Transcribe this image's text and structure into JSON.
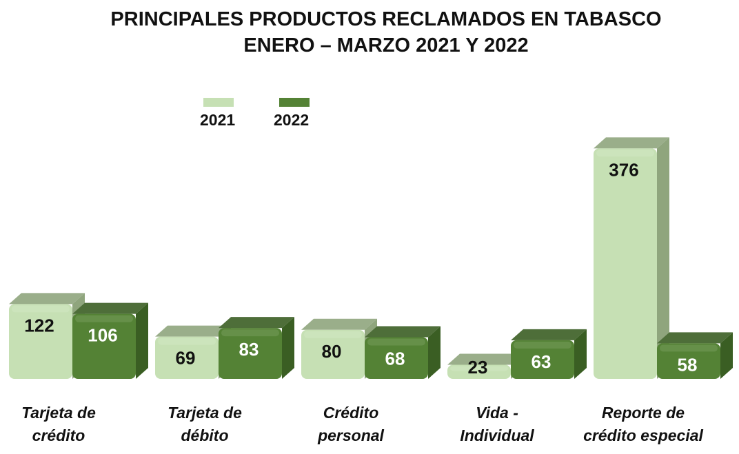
{
  "chart_data": {
    "type": "bar",
    "title": "PRINCIPALES PRODUCTOS RECLAMADOS EN TABASCO",
    "subtitle": "ENERO – MARZO 2021 Y 2022",
    "categories": [
      [
        "Tarjeta de",
        "crédito"
      ],
      [
        "Tarjeta de",
        "débito"
      ],
      [
        "Crédito",
        "personal"
      ],
      [
        "Vida -",
        "Individual"
      ],
      [
        "Reporte de",
        "crédito especial"
      ]
    ],
    "series": [
      {
        "name": "2021",
        "values": [
          122,
          69,
          80,
          23,
          376
        ],
        "color": "#c6e0b4",
        "side": "#8fa57d",
        "label_color": "#111111"
      },
      {
        "name": "2022",
        "values": [
          106,
          83,
          68,
          63,
          58
        ],
        "color": "#548235",
        "side": "#3a5e23",
        "label_color": "#ffffff"
      }
    ],
    "legend_position": "top-left",
    "grid": false,
    "xlabel": "",
    "ylabel": "",
    "ylim": [
      0,
      400
    ]
  }
}
